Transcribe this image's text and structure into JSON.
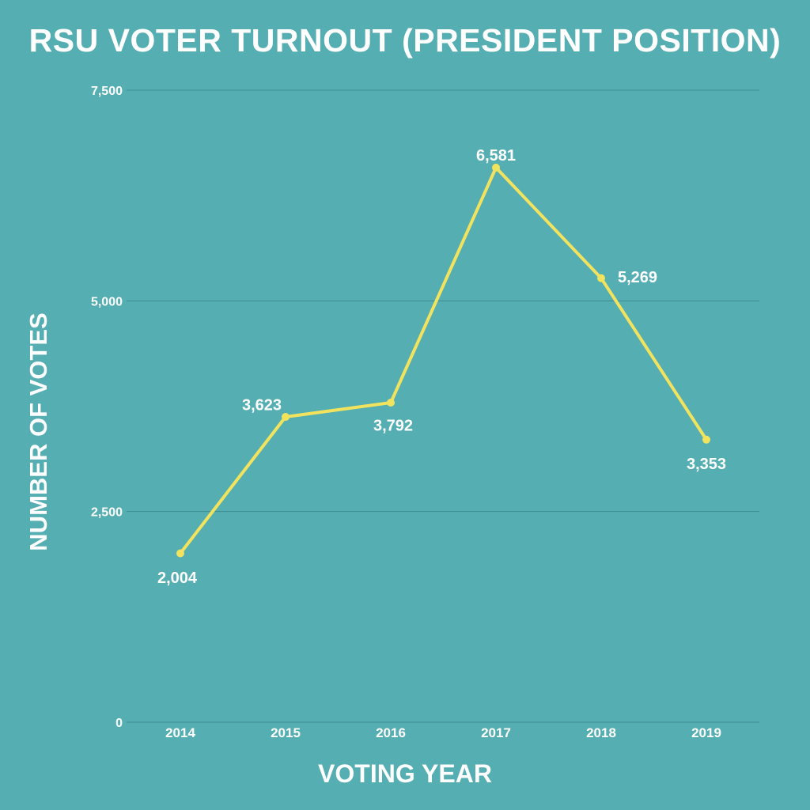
{
  "chart_data": {
    "type": "line",
    "title": "RSU VOTER TURNOUT (PRESIDENT POSITION)",
    "xlabel": "VOTING YEAR",
    "ylabel": "NUMBER OF VOTES",
    "categories": [
      "2014",
      "2015",
      "2016",
      "2017",
      "2018",
      "2019"
    ],
    "series": [
      {
        "values": [
          2004,
          3623,
          3792,
          6581,
          5269,
          3353
        ],
        "value_labels": [
          "2,004",
          "3,623",
          "3,792",
          "6,581",
          "5,269",
          "3,353"
        ]
      }
    ],
    "ylim": [
      0,
      7500
    ],
    "y_ticks": [
      0,
      2500,
      5000,
      7500
    ],
    "y_tick_labels": [
      "0",
      "2,500",
      "5,000",
      "7,500"
    ],
    "grid": true,
    "colors": {
      "background": "#54AEB2",
      "line": "#F2E35F",
      "grid": "#3F8C8F",
      "text": "#FFFFFF"
    }
  }
}
